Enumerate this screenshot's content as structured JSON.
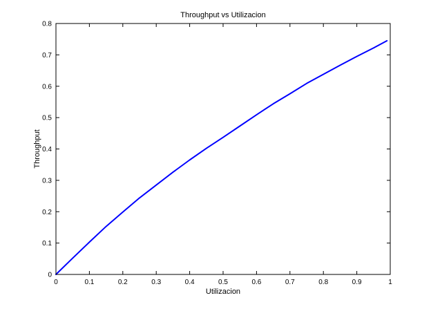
{
  "chart_data": {
    "type": "line",
    "title": "Throughput vs Utilizacion",
    "xlabel": "Utilizacion",
    "ylabel": "Throughput",
    "xlim": [
      0,
      1
    ],
    "ylim": [
      0,
      0.8
    ],
    "xticks": [
      0,
      0.1,
      0.2,
      0.3,
      0.4,
      0.5,
      0.6,
      0.7,
      0.8,
      0.9,
      1
    ],
    "xtick_labels": [
      "0",
      "0.1",
      "0.2",
      "0.3",
      "0.4",
      "0.5",
      "0.6",
      "0.7",
      "0.8",
      "0.9",
      "1"
    ],
    "yticks": [
      0,
      0.1,
      0.2,
      0.3,
      0.4,
      0.5,
      0.6,
      0.7,
      0.8
    ],
    "ytick_labels": [
      "0",
      "0.1",
      "0.2",
      "0.3",
      "0.4",
      "0.5",
      "0.6",
      "0.7",
      "0.8"
    ],
    "grid": false,
    "legend": "none",
    "series": [
      {
        "color": "#0000ff",
        "x": [
          0.0,
          0.05,
          0.1,
          0.15,
          0.2,
          0.25,
          0.3,
          0.35,
          0.4,
          0.45,
          0.5,
          0.55,
          0.6,
          0.65,
          0.7,
          0.75,
          0.8,
          0.85,
          0.9,
          0.95,
          0.99
        ],
        "y": [
          0.0,
          0.052,
          0.103,
          0.153,
          0.199,
          0.244,
          0.285,
          0.326,
          0.365,
          0.402,
          0.437,
          0.473,
          0.509,
          0.544,
          0.576,
          0.609,
          0.638,
          0.667,
          0.695,
          0.722,
          0.745
        ]
      }
    ]
  }
}
